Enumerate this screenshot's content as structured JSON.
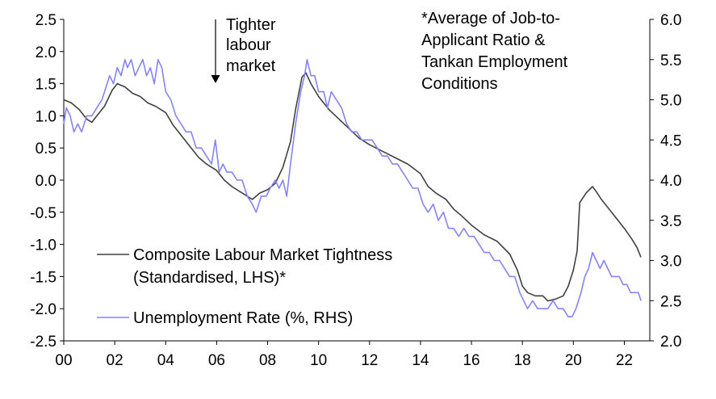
{
  "chart_data": {
    "type": "line",
    "title": "",
    "xlabel": "",
    "ylabel": "",
    "xlim": [
      2000,
      2023
    ],
    "x_ticks": [
      "00",
      "02",
      "04",
      "06",
      "08",
      "10",
      "12",
      "14",
      "16",
      "18",
      "20",
      "22"
    ],
    "x_tick_years": [
      2000,
      2002,
      2004,
      2006,
      2008,
      2010,
      2012,
      2014,
      2016,
      2018,
      2020,
      2022
    ],
    "ylim_left": [
      -2.5,
      2.5
    ],
    "y_ticks_left": [
      "2.5",
      "2.0",
      "1.5",
      "1.0",
      "0.5",
      "0.0",
      "-0.5",
      "-1.0",
      "-1.5",
      "-2.0",
      "-2.5"
    ],
    "ylim_right": [
      2.0,
      6.0
    ],
    "y_ticks_right": [
      "6.0",
      "5.5",
      "5.0",
      "4.5",
      "4.0",
      "3.5",
      "3.0",
      "2.5",
      "2.0"
    ],
    "grid": false,
    "legend_position": "bottom-left",
    "annotations": {
      "tighter": [
        "Tighter",
        "labour",
        "market"
      ],
      "note": [
        "*Average of Job-to-",
        "Applicant Ratio &",
        "Tankan Employment",
        "Conditions"
      ]
    },
    "series": [
      {
        "name": "Composite Labour Market Tightness (Standardised, LHS)*",
        "legend_lines": [
          "Composite Labour Market Tightness",
          "(Standardised, LHS)*"
        ],
        "axis": "left",
        "color": "#404040",
        "points": [
          [
            2000.0,
            1.25
          ],
          [
            2000.3,
            1.2
          ],
          [
            2000.6,
            1.1
          ],
          [
            2000.9,
            0.95
          ],
          [
            2001.1,
            0.9
          ],
          [
            2001.3,
            1.0
          ],
          [
            2001.6,
            1.15
          ],
          [
            2001.9,
            1.4
          ],
          [
            2002.1,
            1.5
          ],
          [
            2002.4,
            1.45
          ],
          [
            2002.7,
            1.35
          ],
          [
            2003.0,
            1.3
          ],
          [
            2003.3,
            1.2
          ],
          [
            2003.6,
            1.15
          ],
          [
            2004.0,
            1.05
          ],
          [
            2004.3,
            0.85
          ],
          [
            2004.6,
            0.7
          ],
          [
            2005.0,
            0.5
          ],
          [
            2005.3,
            0.35
          ],
          [
            2005.6,
            0.25
          ],
          [
            2006.0,
            0.15
          ],
          [
            2006.3,
            0.0
          ],
          [
            2006.6,
            -0.1
          ],
          [
            2007.0,
            -0.2
          ],
          [
            2007.4,
            -0.3
          ],
          [
            2007.7,
            -0.2
          ],
          [
            2008.0,
            -0.15
          ],
          [
            2008.3,
            -0.05
          ],
          [
            2008.6,
            0.2
          ],
          [
            2008.9,
            0.6
          ],
          [
            2009.1,
            1.1
          ],
          [
            2009.35,
            1.6
          ],
          [
            2009.5,
            1.67
          ],
          [
            2009.7,
            1.5
          ],
          [
            2010.0,
            1.3
          ],
          [
            2010.4,
            1.1
          ],
          [
            2010.8,
            0.95
          ],
          [
            2011.2,
            0.8
          ],
          [
            2011.6,
            0.65
          ],
          [
            2012.0,
            0.55
          ],
          [
            2012.5,
            0.45
          ],
          [
            2013.0,
            0.35
          ],
          [
            2013.5,
            0.25
          ],
          [
            2014.0,
            0.1
          ],
          [
            2014.3,
            -0.1
          ],
          [
            2014.6,
            -0.2
          ],
          [
            2015.0,
            -0.3
          ],
          [
            2015.3,
            -0.45
          ],
          [
            2015.6,
            -0.55
          ],
          [
            2016.0,
            -0.7
          ],
          [
            2016.5,
            -0.85
          ],
          [
            2017.0,
            -0.95
          ],
          [
            2017.5,
            -1.15
          ],
          [
            2017.8,
            -1.4
          ],
          [
            2018.0,
            -1.65
          ],
          [
            2018.2,
            -1.75
          ],
          [
            2018.5,
            -1.8
          ],
          [
            2018.8,
            -1.8
          ],
          [
            2019.0,
            -1.88
          ],
          [
            2019.3,
            -1.85
          ],
          [
            2019.6,
            -1.8
          ],
          [
            2019.8,
            -1.65
          ],
          [
            2020.0,
            -1.4
          ],
          [
            2020.15,
            -1.1
          ],
          [
            2020.25,
            -0.35
          ],
          [
            2020.5,
            -0.2
          ],
          [
            2020.75,
            -0.1
          ],
          [
            2020.9,
            -0.18
          ],
          [
            2021.1,
            -0.3
          ],
          [
            2021.4,
            -0.45
          ],
          [
            2021.7,
            -0.6
          ],
          [
            2022.0,
            -0.75
          ],
          [
            2022.3,
            -0.92
          ],
          [
            2022.5,
            -1.05
          ],
          [
            2022.65,
            -1.2
          ]
        ]
      },
      {
        "name": "Unemployment Rate (%, RHS)",
        "legend_lines": [
          "Unemployment Rate (%, RHS)"
        ],
        "axis": "right",
        "color": "#8484f4",
        "points": [
          [
            2000.0,
            4.7
          ],
          [
            2000.1,
            4.9
          ],
          [
            2000.25,
            4.8
          ],
          [
            2000.4,
            4.6
          ],
          [
            2000.55,
            4.7
          ],
          [
            2000.7,
            4.6
          ],
          [
            2000.9,
            4.8
          ],
          [
            2001.1,
            4.8
          ],
          [
            2001.3,
            4.9
          ],
          [
            2001.5,
            5.0
          ],
          [
            2001.7,
            5.2
          ],
          [
            2001.8,
            5.3
          ],
          [
            2001.95,
            5.2
          ],
          [
            2002.1,
            5.4
          ],
          [
            2002.25,
            5.3
          ],
          [
            2002.4,
            5.5
          ],
          [
            2002.5,
            5.4
          ],
          [
            2002.65,
            5.5
          ],
          [
            2002.8,
            5.3
          ],
          [
            2002.95,
            5.4
          ],
          [
            2003.1,
            5.5
          ],
          [
            2003.25,
            5.3
          ],
          [
            2003.4,
            5.4
          ],
          [
            2003.55,
            5.2
          ],
          [
            2003.7,
            5.5
          ],
          [
            2003.85,
            5.4
          ],
          [
            2004.0,
            5.1
          ],
          [
            2004.2,
            5.0
          ],
          [
            2004.4,
            4.8
          ],
          [
            2004.6,
            4.7
          ],
          [
            2004.8,
            4.6
          ],
          [
            2005.0,
            4.6
          ],
          [
            2005.2,
            4.4
          ],
          [
            2005.4,
            4.4
          ],
          [
            2005.6,
            4.3
          ],
          [
            2005.8,
            4.2
          ],
          [
            2005.95,
            4.5
          ],
          [
            2006.1,
            4.1
          ],
          [
            2006.25,
            4.2
          ],
          [
            2006.4,
            4.1
          ],
          [
            2006.6,
            4.1
          ],
          [
            2006.8,
            4.0
          ],
          [
            2007.0,
            4.0
          ],
          [
            2007.2,
            3.8
          ],
          [
            2007.4,
            3.7
          ],
          [
            2007.55,
            3.6
          ],
          [
            2007.75,
            3.8
          ],
          [
            2007.95,
            3.8
          ],
          [
            2008.1,
            3.9
          ],
          [
            2008.3,
            4.0
          ],
          [
            2008.45,
            3.9
          ],
          [
            2008.6,
            4.0
          ],
          [
            2008.75,
            3.8
          ],
          [
            2008.9,
            4.2
          ],
          [
            2009.1,
            4.7
          ],
          [
            2009.3,
            5.1
          ],
          [
            2009.45,
            5.3
          ],
          [
            2009.55,
            5.5
          ],
          [
            2009.7,
            5.3
          ],
          [
            2009.85,
            5.3
          ],
          [
            2010.0,
            5.1
          ],
          [
            2010.2,
            5.1
          ],
          [
            2010.35,
            4.9
          ],
          [
            2010.5,
            5.1
          ],
          [
            2010.7,
            5.0
          ],
          [
            2010.9,
            4.9
          ],
          [
            2011.1,
            4.7
          ],
          [
            2011.3,
            4.6
          ],
          [
            2011.5,
            4.6
          ],
          [
            2011.7,
            4.5
          ],
          [
            2011.9,
            4.5
          ],
          [
            2012.1,
            4.5
          ],
          [
            2012.3,
            4.4
          ],
          [
            2012.5,
            4.3
          ],
          [
            2012.7,
            4.3
          ],
          [
            2012.9,
            4.2
          ],
          [
            2013.1,
            4.2
          ],
          [
            2013.3,
            4.1
          ],
          [
            2013.5,
            4.0
          ],
          [
            2013.7,
            3.9
          ],
          [
            2013.9,
            3.9
          ],
          [
            2014.1,
            3.7
          ],
          [
            2014.3,
            3.6
          ],
          [
            2014.5,
            3.7
          ],
          [
            2014.7,
            3.5
          ],
          [
            2014.9,
            3.6
          ],
          [
            2015.1,
            3.4
          ],
          [
            2015.3,
            3.4
          ],
          [
            2015.5,
            3.3
          ],
          [
            2015.7,
            3.4
          ],
          [
            2015.9,
            3.3
          ],
          [
            2016.1,
            3.3
          ],
          [
            2016.3,
            3.2
          ],
          [
            2016.5,
            3.1
          ],
          [
            2016.7,
            3.1
          ],
          [
            2016.9,
            3.0
          ],
          [
            2017.1,
            3.0
          ],
          [
            2017.3,
            2.9
          ],
          [
            2017.5,
            2.8
          ],
          [
            2017.7,
            2.8
          ],
          [
            2017.9,
            2.6
          ],
          [
            2018.05,
            2.5
          ],
          [
            2018.2,
            2.4
          ],
          [
            2018.4,
            2.5
          ],
          [
            2018.6,
            2.4
          ],
          [
            2018.8,
            2.4
          ],
          [
            2019.0,
            2.4
          ],
          [
            2019.2,
            2.5
          ],
          [
            2019.4,
            2.4
          ],
          [
            2019.6,
            2.4
          ],
          [
            2019.8,
            2.3
          ],
          [
            2019.95,
            2.3
          ],
          [
            2020.1,
            2.4
          ],
          [
            2020.3,
            2.6
          ],
          [
            2020.45,
            2.8
          ],
          [
            2020.6,
            2.9
          ],
          [
            2020.75,
            3.1
          ],
          [
            2020.9,
            3.0
          ],
          [
            2021.05,
            2.9
          ],
          [
            2021.2,
            3.0
          ],
          [
            2021.35,
            2.9
          ],
          [
            2021.5,
            2.8
          ],
          [
            2021.65,
            2.8
          ],
          [
            2021.8,
            2.8
          ],
          [
            2021.95,
            2.7
          ],
          [
            2022.1,
            2.7
          ],
          [
            2022.25,
            2.6
          ],
          [
            2022.4,
            2.6
          ],
          [
            2022.55,
            2.6
          ],
          [
            2022.65,
            2.5
          ]
        ]
      }
    ]
  }
}
